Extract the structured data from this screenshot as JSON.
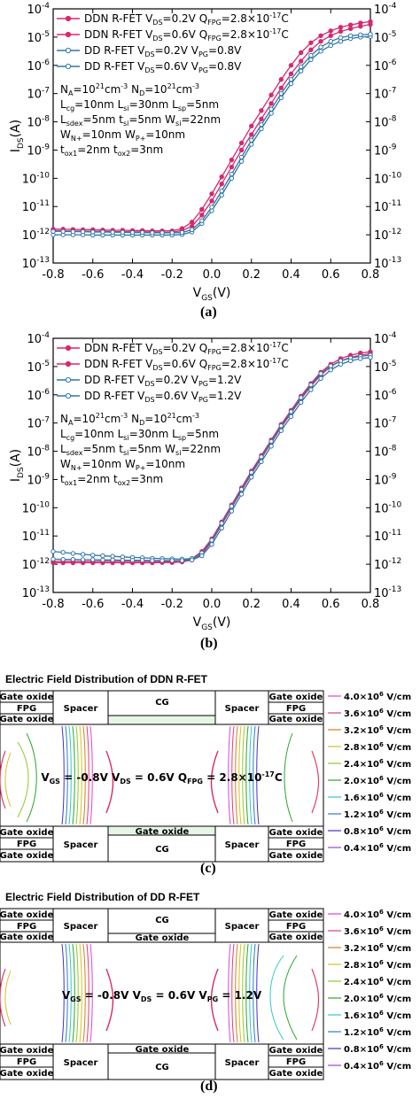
{
  "captions": [
    "(a)",
    "(b)",
    "(c)",
    "(d)"
  ],
  "chart_data": [
    {
      "type": "line",
      "xlabel": "V",
      "xlabel_sub": "GS",
      "xlabel_unit": "(V)",
      "ylabel": "I",
      "ylabel_sub": "DS",
      "ylabel_unit": "(A)",
      "xlim": [
        -0.8,
        0.8
      ],
      "ylim_log10": [
        -13,
        -4
      ],
      "y_scale": "log",
      "xticks": [
        "-0.8",
        "-0.6",
        "-0.4",
        "-0.2",
        "0.0",
        "0.2",
        "0.4",
        "0.6",
        "0.8"
      ],
      "yticks_exp": [
        "-4",
        "-5",
        "-6",
        "-7",
        "-8",
        "-9",
        "-10",
        "-11",
        "-12",
        "-13"
      ],
      "legend": [
        {
          "text": "DDN R-FET V",
          "sub1": "DS",
          "mid": "=0.2V Q",
          "sub2": "FPG",
          "end": "=2.8×10",
          "sup": "-17",
          "tail": "C",
          "color": "#d6286e",
          "marker": "filled"
        },
        {
          "text": "DDN R-FET V",
          "sub1": "DS",
          "mid": "=0.6V Q",
          "sub2": "FPG",
          "end": "=2.8×10",
          "sup": "-17",
          "tail": "C",
          "color": "#d6286e",
          "marker": "filled"
        },
        {
          "text": "DD R-FET V",
          "sub1": "DS",
          "mid": "=0.2V V",
          "sub2": "PG",
          "end": "=0.8V",
          "sup": "",
          "tail": "",
          "color": "#2f76a8",
          "marker": "open"
        },
        {
          "text": "DD R-FET V",
          "sub1": "DS",
          "mid": "=0.6V V",
          "sub2": "PG",
          "end": "=0.8V",
          "sup": "",
          "tail": "",
          "color": "#2f76a8",
          "marker": "open"
        }
      ],
      "params": [
        "N_A=10^21cm^-3 N_D=10^21cm^-3",
        "L_cg=10nm L_si=30nm L_sp=5nm",
        "L_sdex=5nm t_si=5nm W_si=22nm",
        "W_N+=10nm W_P+=10nm",
        "t_ox1=2nm t_ox2=3nm"
      ],
      "x": [
        -0.8,
        -0.75,
        -0.7,
        -0.65,
        -0.6,
        -0.55,
        -0.5,
        -0.45,
        -0.4,
        -0.35,
        -0.3,
        -0.25,
        -0.2,
        -0.15,
        -0.1,
        -0.05,
        0.0,
        0.05,
        0.1,
        0.15,
        0.2,
        0.25,
        0.3,
        0.35,
        0.4,
        0.45,
        0.5,
        0.55,
        0.6,
        0.65,
        0.7,
        0.75,
        0.8
      ],
      "series": [
        {
          "name": "DDN V_DS=0.2V",
          "color": "#d6286e",
          "marker": "filled",
          "log10_values": [
            -11.85,
            -11.86,
            -11.87,
            -11.87,
            -11.88,
            -11.88,
            -11.89,
            -11.89,
            -11.9,
            -11.9,
            -11.9,
            -11.91,
            -11.91,
            -11.85,
            -11.7,
            -11.3,
            -10.8,
            -10.2,
            -9.6,
            -9.0,
            -8.45,
            -7.9,
            -7.35,
            -6.8,
            -6.3,
            -5.85,
            -5.45,
            -5.15,
            -4.95,
            -4.8,
            -4.7,
            -4.62,
            -4.55
          ]
        },
        {
          "name": "DDN V_DS=0.6V",
          "color": "#d6286e",
          "marker": "filled",
          "log10_values": [
            -11.8,
            -11.8,
            -11.81,
            -11.82,
            -11.82,
            -11.83,
            -11.84,
            -11.84,
            -11.85,
            -11.85,
            -11.86,
            -11.86,
            -11.86,
            -11.78,
            -11.55,
            -11.1,
            -10.55,
            -9.95,
            -9.35,
            -8.75,
            -8.15,
            -7.6,
            -7.05,
            -6.5,
            -6.0,
            -5.55,
            -5.2,
            -4.95,
            -4.78,
            -4.65,
            -4.57,
            -4.5,
            -4.45
          ]
        },
        {
          "name": "DD V_DS=0.2V",
          "color": "#2f76a8",
          "marker": "open",
          "log10_values": [
            -12.0,
            -12.0,
            -12.0,
            -12.0,
            -12.01,
            -12.01,
            -12.01,
            -12.01,
            -12.01,
            -12.01,
            -12.01,
            -12.01,
            -12.01,
            -11.99,
            -11.9,
            -11.6,
            -11.15,
            -10.6,
            -10.0,
            -9.4,
            -8.8,
            -8.25,
            -7.7,
            -7.15,
            -6.65,
            -6.2,
            -5.8,
            -5.5,
            -5.3,
            -5.15,
            -5.05,
            -5.0,
            -4.98
          ]
        },
        {
          "name": "DD V_DS=0.6V",
          "color": "#2f76a8",
          "marker": "open",
          "log10_values": [
            -11.88,
            -11.88,
            -11.89,
            -11.89,
            -11.9,
            -11.9,
            -11.91,
            -11.91,
            -11.92,
            -11.92,
            -11.93,
            -11.93,
            -11.93,
            -11.92,
            -11.82,
            -11.5,
            -11.02,
            -10.45,
            -9.85,
            -9.25,
            -8.65,
            -8.1,
            -7.55,
            -7.0,
            -6.5,
            -6.05,
            -5.65,
            -5.35,
            -5.15,
            -5.02,
            -4.95,
            -4.92,
            -4.9
          ]
        }
      ]
    },
    {
      "type": "line",
      "xlabel": "V",
      "xlabel_sub": "GS",
      "xlabel_unit": "(V)",
      "ylabel": "I",
      "ylabel_sub": "DS",
      "ylabel_unit": "(A)",
      "xlim": [
        -0.8,
        0.8
      ],
      "ylim_log10": [
        -13,
        -4
      ],
      "y_scale": "log",
      "xticks": [
        "-0.8",
        "-0.6",
        "-0.4",
        "-0.2",
        "0.0",
        "0.2",
        "0.4",
        "0.6",
        "0.8"
      ],
      "yticks_exp": [
        "-4",
        "-5",
        "-6",
        "-7",
        "-8",
        "-9",
        "-10",
        "-11",
        "-12",
        "-13"
      ],
      "legend": [
        {
          "text": "DDN R-FET V",
          "sub1": "DS",
          "mid": "=0.2V Q",
          "sub2": "FPG",
          "end": "=2.8×10",
          "sup": "-17",
          "tail": "C",
          "color": "#d6286e",
          "marker": "filled"
        },
        {
          "text": "DDN R-FET V",
          "sub1": "DS",
          "mid": "=0.6V Q",
          "sub2": "FPG",
          "end": "=2.8×10",
          "sup": "-17",
          "tail": "C",
          "color": "#d6286e",
          "marker": "filled"
        },
        {
          "text": "DD R-FET V",
          "sub1": "DS",
          "mid": "=0.2V V",
          "sub2": "PG",
          "end": "=1.2V",
          "sup": "",
          "tail": "",
          "color": "#2f76a8",
          "marker": "open"
        },
        {
          "text": "DD R-FET V",
          "sub1": "DS",
          "mid": "=0.6V V",
          "sub2": "PG",
          "end": "=1.2V",
          "sup": "",
          "tail": "",
          "color": "#2f76a8",
          "marker": "open"
        }
      ],
      "params": [
        "N_A=10^21cm^-3 N_D=10^21cm^-3",
        "L_cg=10nm L_si=30nm L_sp=5nm",
        "L_sdex=5nm t_si=5nm W_si=22nm",
        "W_N+=10nm W_P+=10nm",
        "t_ox1=2nm t_ox2=3nm"
      ],
      "x": [
        -0.8,
        -0.75,
        -0.7,
        -0.65,
        -0.6,
        -0.55,
        -0.5,
        -0.45,
        -0.4,
        -0.35,
        -0.3,
        -0.25,
        -0.2,
        -0.15,
        -0.1,
        -0.05,
        0.0,
        0.05,
        0.1,
        0.15,
        0.2,
        0.25,
        0.3,
        0.35,
        0.4,
        0.45,
        0.5,
        0.55,
        0.6,
        0.65,
        0.7,
        0.75,
        0.8
      ],
      "series": [
        {
          "name": "DDN V_DS=0.2V",
          "color": "#d6286e",
          "marker": "filled",
          "log10_values": [
            -11.95,
            -11.95,
            -11.95,
            -11.95,
            -11.95,
            -11.95,
            -11.95,
            -11.95,
            -11.95,
            -11.95,
            -11.95,
            -11.94,
            -11.94,
            -11.92,
            -11.85,
            -11.65,
            -11.2,
            -10.6,
            -10.0,
            -9.4,
            -8.8,
            -8.25,
            -7.7,
            -7.15,
            -6.65,
            -6.15,
            -5.7,
            -5.3,
            -5.0,
            -4.8,
            -4.68,
            -4.6,
            -4.55
          ]
        },
        {
          "name": "DDN V_DS=0.6V",
          "color": "#d6286e",
          "marker": "filled",
          "log10_values": [
            -11.9,
            -11.9,
            -11.9,
            -11.9,
            -11.9,
            -11.9,
            -11.9,
            -11.9,
            -11.9,
            -11.9,
            -11.9,
            -11.9,
            -11.9,
            -11.88,
            -11.8,
            -11.55,
            -11.1,
            -10.5,
            -9.9,
            -9.3,
            -8.7,
            -8.15,
            -7.6,
            -7.05,
            -6.55,
            -6.05,
            -5.6,
            -5.2,
            -4.92,
            -4.72,
            -4.6,
            -4.52,
            -4.48
          ]
        },
        {
          "name": "DD V_DS=0.2V",
          "color": "#2f76a8",
          "marker": "open",
          "log10_values": [
            -11.55,
            -11.58,
            -11.62,
            -11.65,
            -11.68,
            -11.7,
            -11.72,
            -11.74,
            -11.76,
            -11.77,
            -11.79,
            -11.8,
            -11.81,
            -11.82,
            -11.8,
            -11.6,
            -11.15,
            -10.55,
            -9.95,
            -9.35,
            -8.75,
            -8.2,
            -7.65,
            -7.1,
            -6.6,
            -6.1,
            -5.65,
            -5.25,
            -4.98,
            -4.8,
            -4.7,
            -4.64,
            -4.6
          ]
        },
        {
          "name": "DD V_DS=0.6V",
          "color": "#2f76a8",
          "marker": "open",
          "log10_values": [
            -11.82,
            -11.83,
            -11.83,
            -11.84,
            -11.84,
            -11.85,
            -11.85,
            -11.86,
            -11.86,
            -11.86,
            -11.87,
            -11.87,
            -11.87,
            -11.87,
            -11.85,
            -11.7,
            -11.3,
            -10.72,
            -10.12,
            -9.52,
            -8.92,
            -8.37,
            -7.82,
            -7.27,
            -6.77,
            -6.27,
            -5.82,
            -5.42,
            -5.12,
            -4.92,
            -4.8,
            -4.72,
            -4.68
          ]
        }
      ]
    }
  ],
  "field_panels": [
    {
      "title": "Electric Field Distribution of DDN R-FET",
      "labels": {
        "gate_oxide": "Gate oxide",
        "fpg": "FPG",
        "spacer": "Spacer",
        "cg": "CG"
      },
      "center_text": {
        "a": "V",
        "a_sub": "GS",
        "b": " = -0.8V V",
        "b_sub": "DS",
        "c": " = 0.6V Q",
        "c_sub": "FPG",
        "d": " = 2.8×10",
        "d_sup": "-17",
        "e": "C"
      }
    },
    {
      "title": "Electric Field Distribution of DD R-FET",
      "labels": {
        "gate_oxide": "Gate oxide",
        "fpg": "FPG",
        "spacer": "Spacer",
        "cg": "CG"
      },
      "center_text": {
        "a": "V",
        "a_sub": "GS",
        "b": " = -0.8V V",
        "b_sub": "DS",
        "c": " = 0.6V V",
        "c_sub": "PG",
        "d": " = 1.2V",
        "d_sup": "",
        "e": ""
      }
    }
  ],
  "field_legend": [
    {
      "value": "4.0×10",
      "sup": "6",
      "unit": " V/cm",
      "color": "#e040e0"
    },
    {
      "value": "3.6×10",
      "sup": "6",
      "unit": " V/cm",
      "color": "#e0406a"
    },
    {
      "value": "3.2×10",
      "sup": "6",
      "unit": " V/cm",
      "color": "#e07a20"
    },
    {
      "value": "2.8×10",
      "sup": "6",
      "unit": " V/cm",
      "color": "#d4c020"
    },
    {
      "value": "2.4×10",
      "sup": "6",
      "unit": " V/cm",
      "color": "#8ccc28"
    },
    {
      "value": "2.0×10",
      "sup": "6",
      "unit": " V/cm",
      "color": "#2aa52a"
    },
    {
      "value": "1.6×10",
      "sup": "6",
      "unit": " V/cm",
      "color": "#30c8c0"
    },
    {
      "value": "1.2×10",
      "sup": "6",
      "unit": " V/cm",
      "color": "#2a7ad4"
    },
    {
      "value": "0.8×10",
      "sup": "6",
      "unit": " V/cm",
      "color": "#4a2ad0"
    },
    {
      "value": "0.4×10",
      "sup": "6",
      "unit": " V/cm",
      "color": "#a040e0"
    }
  ]
}
